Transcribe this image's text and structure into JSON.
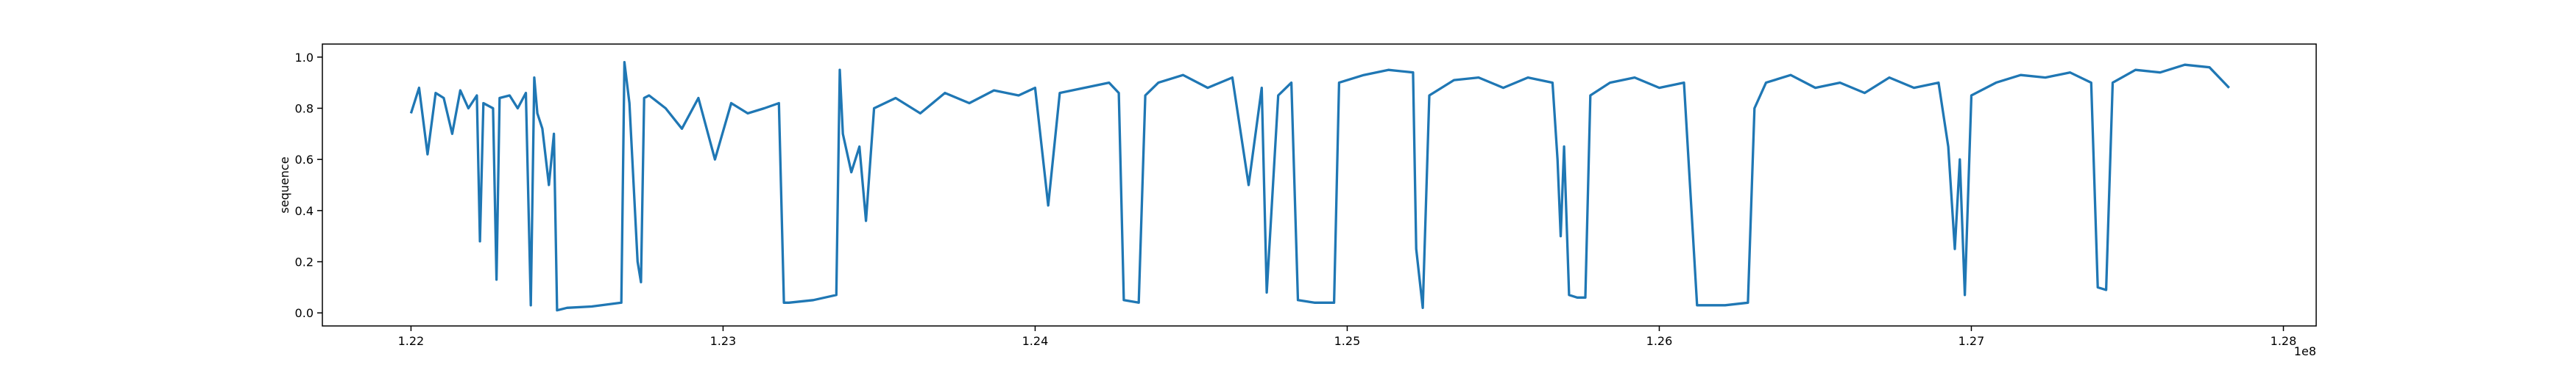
{
  "chart_data": {
    "type": "line",
    "ylabel": "sequence",
    "x_offset_label": "1e8",
    "color": "#1f77b4",
    "xlim": [
      121716000,
      128105000
    ],
    "ylim": [
      -0.051,
      1.051
    ],
    "xticks": [
      {
        "value": 122000000,
        "label": "1.22"
      },
      {
        "value": 123000000,
        "label": "1.23"
      },
      {
        "value": 124000000,
        "label": "1.24"
      },
      {
        "value": 125000000,
        "label": "1.25"
      },
      {
        "value": 126000000,
        "label": "1.26"
      },
      {
        "value": 127000000,
        "label": "1.27"
      },
      {
        "value": 128000000,
        "label": "1.28"
      }
    ],
    "yticks": [
      {
        "value": 0,
        "label": "0.0"
      },
      0.2,
      0.4,
      0.6,
      0.8,
      {
        "value": 1,
        "label": "1.0"
      }
    ],
    "x": [
      122000000,
      122026000,
      122053000,
      122079000,
      122105000,
      122132000,
      122158000,
      122184000,
      122211000,
      122221000,
      122232000,
      122263000,
      122274000,
      122284000,
      122316000,
      122342000,
      122368000,
      122384000,
      122395000,
      122405000,
      122421000,
      122442000,
      122458000,
      122468000,
      122500000,
      122579000,
      122674000,
      122684000,
      122700000,
      122726000,
      122737000,
      122747000,
      122763000,
      122816000,
      122868000,
      122921000,
      122974000,
      123026000,
      123079000,
      123132000,
      123179000,
      123195000,
      123211000,
      123289000,
      123363000,
      123374000,
      123384000,
      123411000,
      123437000,
      123458000,
      123484000,
      123553000,
      123632000,
      123711000,
      123789000,
      123868000,
      123947000,
      124000000,
      124042000,
      124079000,
      124158000,
      124237000,
      124268000,
      124284000,
      124332000,
      124353000,
      124395000,
      124474000,
      124553000,
      124632000,
      124684000,
      124726000,
      124742000,
      124779000,
      124821000,
      124842000,
      124895000,
      124958000,
      124974000,
      125053000,
      125132000,
      125211000,
      125221000,
      125242000,
      125263000,
      125342000,
      125421000,
      125500000,
      125579000,
      125658000,
      125674000,
      125684000,
      125695000,
      125711000,
      125737000,
      125763000,
      125779000,
      125842000,
      125921000,
      126000000,
      126079000,
      126121000,
      126132000,
      126211000,
      126284000,
      126305000,
      126342000,
      126421000,
      126500000,
      126579000,
      126658000,
      126737000,
      126816000,
      126895000,
      126926000,
      126947000,
      126963000,
      126979000,
      127000000,
      127079000,
      127158000,
      127237000,
      127316000,
      127384000,
      127405000,
      127432000,
      127453000,
      127526000,
      127605000,
      127684000,
      127763000,
      127826000
    ],
    "values": [
      0.78,
      0.88,
      0.62,
      0.86,
      0.84,
      0.7,
      0.87,
      0.8,
      0.85,
      0.28,
      0.82,
      0.8,
      0.13,
      0.84,
      0.85,
      0.8,
      0.86,
      0.03,
      0.92,
      0.78,
      0.72,
      0.5,
      0.7,
      0.01,
      0.02,
      0.025,
      0.04,
      0.98,
      0.82,
      0.2,
      0.12,
      0.84,
      0.85,
      0.8,
      0.72,
      0.84,
      0.6,
      0.82,
      0.78,
      0.8,
      0.82,
      0.04,
      0.04,
      0.05,
      0.07,
      0.95,
      0.7,
      0.55,
      0.65,
      0.36,
      0.8,
      0.84,
      0.78,
      0.86,
      0.82,
      0.87,
      0.85,
      0.88,
      0.42,
      0.86,
      0.88,
      0.9,
      0.86,
      0.05,
      0.04,
      0.85,
      0.9,
      0.93,
      0.88,
      0.92,
      0.5,
      0.88,
      0.08,
      0.85,
      0.9,
      0.05,
      0.04,
      0.04,
      0.9,
      0.93,
      0.95,
      0.94,
      0.25,
      0.02,
      0.85,
      0.91,
      0.92,
      0.88,
      0.92,
      0.9,
      0.6,
      0.3,
      0.65,
      0.07,
      0.06,
      0.06,
      0.85,
      0.9,
      0.92,
      0.88,
      0.9,
      0.03,
      0.03,
      0.03,
      0.04,
      0.8,
      0.9,
      0.93,
      0.88,
      0.9,
      0.86,
      0.92,
      0.88,
      0.9,
      0.65,
      0.25,
      0.6,
      0.07,
      0.85,
      0.9,
      0.93,
      0.92,
      0.94,
      0.9,
      0.1,
      0.09,
      0.9,
      0.95,
      0.94,
      0.97,
      0.96,
      0.88
    ]
  }
}
